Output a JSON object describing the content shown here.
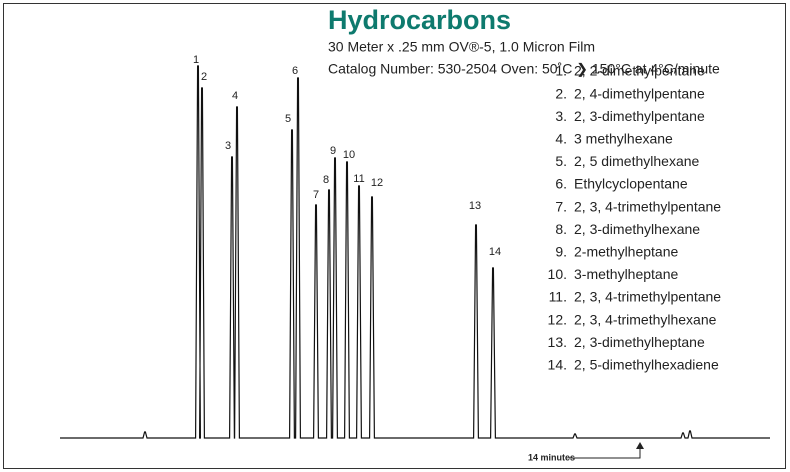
{
  "title": "Hydrocarbons",
  "subtitle": [
    "30 Meter x .25 mm OV®-5, 1.0 Micron Film",
    "Catalog Number: 530-2504 Oven: 50˚C ❯ 150°C at 4°C/minute"
  ],
  "peaks": [
    "1",
    "2",
    "3",
    "4",
    "5",
    "6",
    "7",
    "8",
    "9",
    "10",
    "11",
    "12",
    "13",
    "14"
  ],
  "compounds": [
    {
      "number": "1.",
      "name": "2, 2-dimethylpentane"
    },
    {
      "number": "2.",
      "name": "2, 4-dimethylpentane"
    },
    {
      "number": "3.",
      "name": "2, 3-dimethylpentane"
    },
    {
      "number": "4.",
      "name": "3 methylhexane"
    },
    {
      "number": "5.",
      "name": "2, 5 dimethylhexane"
    },
    {
      "number": "6.",
      "name": "Ethylcyclopentane"
    },
    {
      "number": "7.",
      "name": "2, 3, 4-trimethylpentane"
    },
    {
      "number": "8.",
      "name": "2, 3-dimethylhexane"
    },
    {
      "number": "9.",
      "name": "2-methylheptane"
    },
    {
      "number": "10.",
      "name": "3-methylheptane"
    },
    {
      "number": "11.",
      "name": "2, 3, 4-trimethylpentane"
    },
    {
      "number": "12.",
      "name": "2, 3, 4-trimethylhexane"
    },
    {
      "number": "13.",
      "name": "2, 3-dimethylheptane"
    },
    {
      "number": "14.",
      "name": "2, 5-dimethylhexadiene"
    }
  ],
  "time_label": "14 minutes"
}
